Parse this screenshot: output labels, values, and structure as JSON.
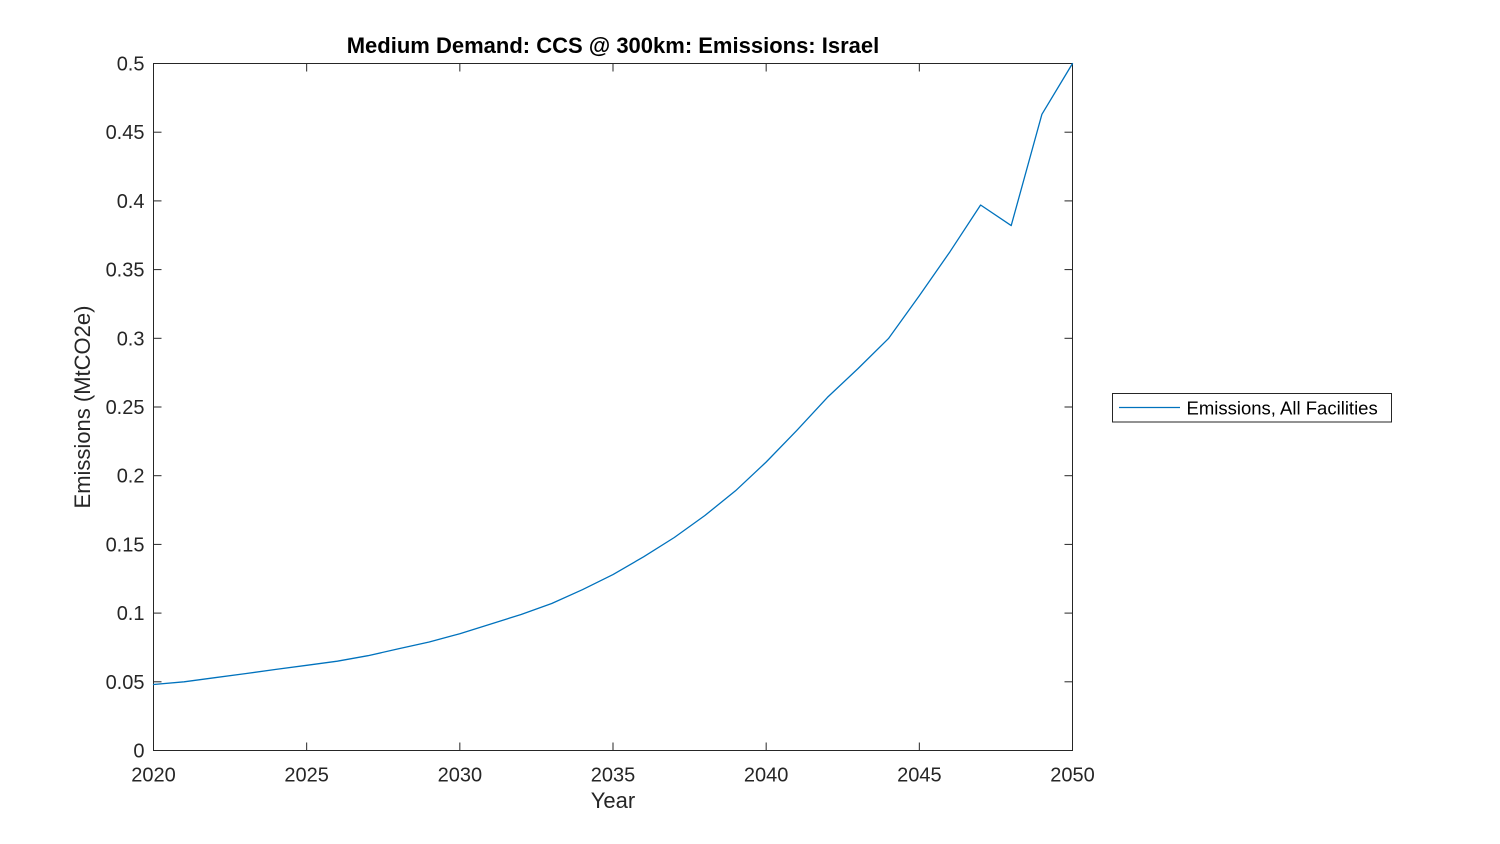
{
  "chart_data": {
    "type": "line",
    "title": "Medium Demand: CCS @ 300km: Emissions: Israel",
    "xlabel": "Year",
    "ylabel": "Emissions (MtCO2e)",
    "xlim": [
      2020,
      2050
    ],
    "ylim": [
      0,
      0.5
    ],
    "grid": false,
    "xticks": {
      "values": [
        2020,
        2025,
        2030,
        2035,
        2040,
        2045,
        2050
      ],
      "labels": [
        "2020",
        "2025",
        "2030",
        "2035",
        "2040",
        "2045",
        "2050"
      ]
    },
    "yticks": {
      "values": [
        0,
        0.05,
        0.1,
        0.15,
        0.2,
        0.25,
        0.3,
        0.35,
        0.4,
        0.45,
        0.5
      ],
      "labels": [
        "0",
        "0.05",
        "0.1",
        "0.15",
        "0.2",
        "0.25",
        "0.3",
        "0.35",
        "0.4",
        "0.45",
        "0.5"
      ]
    },
    "legend": {
      "position": "outside-right",
      "entries": [
        {
          "label": "Emissions, All Facilities",
          "color": "#0072BD"
        }
      ]
    },
    "series": [
      {
        "name": "Emissions, All Facilities",
        "color": "#0072BD",
        "x": [
          2020,
          2021,
          2022,
          2023,
          2024,
          2025,
          2026,
          2027,
          2028,
          2029,
          2030,
          2031,
          2032,
          2033,
          2034,
          2035,
          2036,
          2037,
          2038,
          2039,
          2040,
          2041,
          2042,
          2043,
          2044,
          2045,
          2046,
          2047,
          2048,
          2049,
          2050
        ],
        "y": [
          0.048,
          0.05,
          0.053,
          0.056,
          0.059,
          0.062,
          0.065,
          0.069,
          0.074,
          0.079,
          0.085,
          0.092,
          0.099,
          0.107,
          0.117,
          0.128,
          0.141,
          0.155,
          0.171,
          0.189,
          0.21,
          0.233,
          0.257,
          0.278,
          0.3,
          0.331,
          0.363,
          0.397,
          0.382,
          0.463,
          0.5
        ]
      }
    ]
  },
  "colors": {
    "line": "#0072BD",
    "axis": "#262626",
    "background": "#ffffff"
  }
}
